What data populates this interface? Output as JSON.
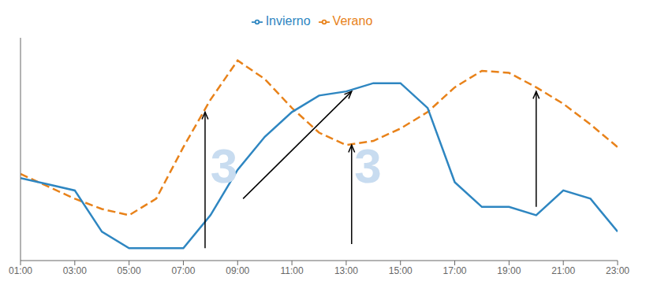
{
  "chart_data": {
    "type": "line",
    "x": [
      1,
      2,
      3,
      4,
      5,
      6,
      7,
      8,
      9,
      10,
      11,
      12,
      13,
      14,
      15,
      16,
      17,
      18,
      19,
      20,
      21,
      22,
      23
    ],
    "series": [
      {
        "name": "Verano",
        "color": "#E8821A",
        "line_style": "dashed",
        "values": [
          0.42,
          0.36,
          0.3,
          0.25,
          0.22,
          0.3,
          0.55,
          0.78,
          0.97,
          0.88,
          0.74,
          0.62,
          0.56,
          0.58,
          0.64,
          0.72,
          0.84,
          0.92,
          0.91,
          0.84,
          0.76,
          0.66,
          0.55
        ]
      },
      {
        "name": "Invierno",
        "color": "#2E86C1",
        "line_style": "solid",
        "values": [
          0.4,
          0.37,
          0.34,
          0.14,
          0.06,
          0.06,
          0.06,
          0.22,
          0.44,
          0.6,
          0.72,
          0.8,
          0.82,
          0.86,
          0.86,
          0.74,
          0.38,
          0.26,
          0.26,
          0.22,
          0.34,
          0.3,
          0.14
        ]
      }
    ],
    "xlim": [
      1,
      23
    ],
    "xticks": [
      {
        "value": 1,
        "label": "01:00"
      },
      {
        "value": 3,
        "label": "03:00"
      },
      {
        "value": 5,
        "label": "05:00"
      },
      {
        "value": 7,
        "label": "07:00"
      },
      {
        "value": 9,
        "label": "09:00"
      },
      {
        "value": 11,
        "label": "11:00"
      },
      {
        "value": 13,
        "label": "13:00"
      },
      {
        "value": 15,
        "label": "15:00"
      },
      {
        "value": 17,
        "label": "17:00"
      },
      {
        "value": 19,
        "label": "19:00"
      },
      {
        "value": 21,
        "label": "21:00"
      },
      {
        "value": 23,
        "label": "23:00"
      }
    ],
    "ylim": [
      0,
      1.08
    ],
    "tick_labels": "x",
    "grid": false,
    "legend": "top",
    "annotations": [
      {
        "text": "3",
        "x": 8.5,
        "y": 0.46
      },
      {
        "text": "3",
        "x": 13.8,
        "y": 0.46
      }
    ],
    "arrows": [
      {
        "x1": 7.8,
        "y1": 0.06,
        "x2": 7.8,
        "y2": 0.72
      },
      {
        "x1": 9.2,
        "y1": 0.3,
        "x2": 13.2,
        "y2": 0.82
      },
      {
        "x1": 13.2,
        "y1": 0.08,
        "x2": 13.2,
        "y2": 0.56
      },
      {
        "x1": 20.0,
        "y1": 0.26,
        "x2": 20.0,
        "y2": 0.82
      }
    ]
  }
}
